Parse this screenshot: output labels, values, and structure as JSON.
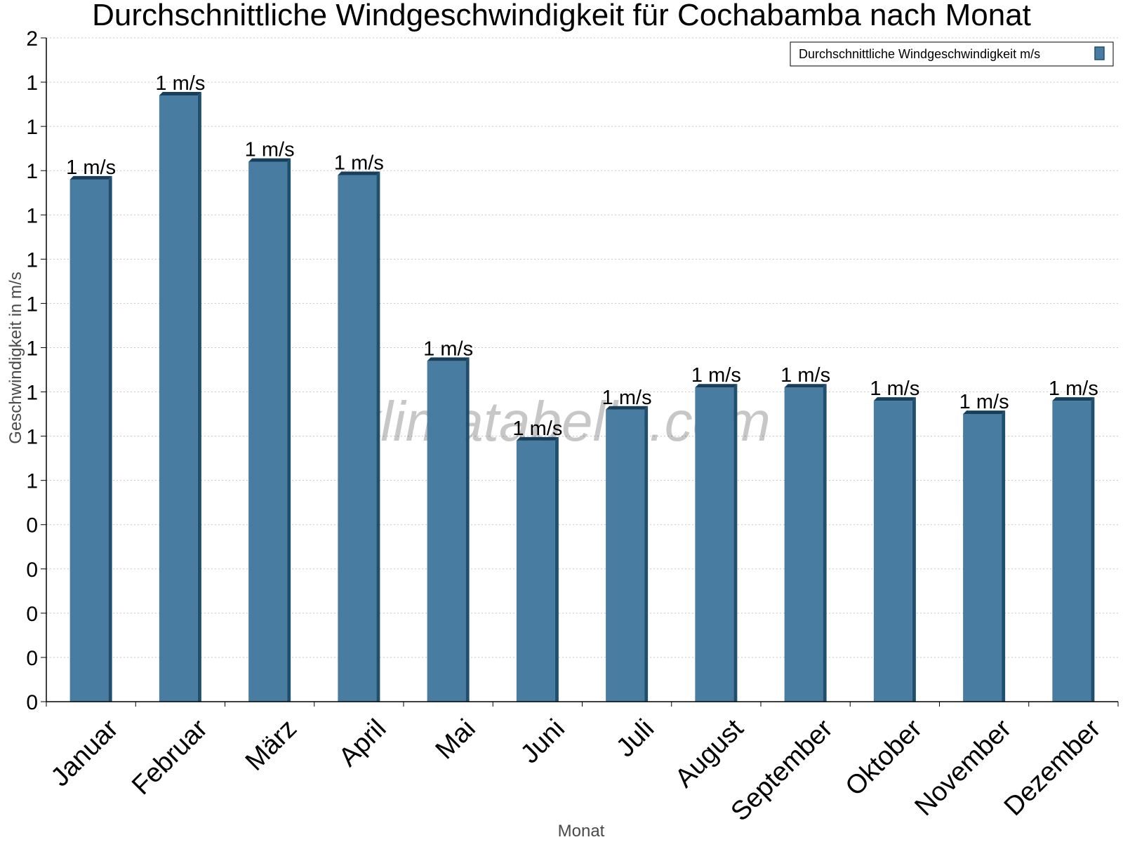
{
  "chart_data": {
    "type": "bar",
    "title": "Durchschnittliche Windgeschwindigkeit für Cochabamba nach Monat",
    "xlabel": "Monat",
    "ylabel": "Geschwindigkeit in m/s",
    "categories": [
      "Januar",
      "Februar",
      "März",
      "April",
      "Mai",
      "Juni",
      "Juli",
      "August",
      "September",
      "Oktober",
      "November",
      "Dezember"
    ],
    "series": [
      {
        "name": "Durchschnittliche Windgeschwindigkeit m/s",
        "values": [
          1.18,
          1.37,
          1.22,
          1.19,
          0.77,
          0.59,
          0.66,
          0.71,
          0.71,
          0.68,
          0.65,
          0.68
        ],
        "data_labels": [
          "1 m/s",
          "1 m/s",
          "1 m/s",
          "1 m/s",
          "1 m/s",
          "1 m/s",
          "1 m/s",
          "1 m/s",
          "1 m/s",
          "1 m/s",
          "1 m/s",
          "1 m/s"
        ]
      }
    ],
    "ylim": [
      0,
      1.5
    ],
    "y_ticks": [
      0,
      0.1,
      0.2,
      0.3,
      0.4,
      0.5,
      0.6,
      0.7,
      0.8,
      0.9,
      1.0,
      1.1,
      1.2,
      1.3,
      1.4,
      1.5
    ],
    "y_tick_labels": [
      "0",
      "0",
      "0",
      "0",
      "0",
      "1",
      "1",
      "1",
      "1",
      "1",
      "1",
      "1",
      "1",
      "1",
      "1",
      "2"
    ],
    "grid": true,
    "legend_position": "top-right",
    "colors": {
      "bar": "#487ca0",
      "bar_side": "#1e4f6f",
      "bar_top": "#173f5c"
    }
  },
  "watermark": "klimatabelle.com"
}
